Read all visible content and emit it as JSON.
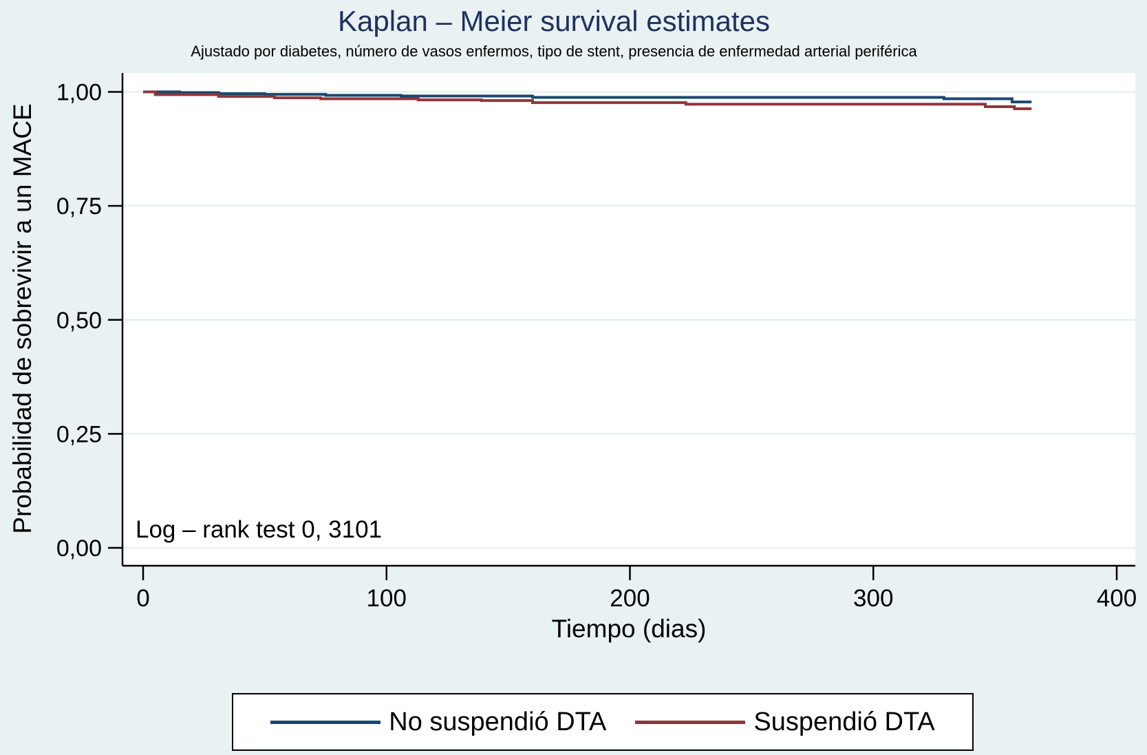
{
  "chart_data": {
    "type": "line",
    "subtype": "kaplan-meier-step-survival",
    "title": "Kaplan – Meier survival estimates",
    "subtitle": "Ajustado por diabetes, número de vasos enfermos, tipo de stent, presencia de enfermedad arterial periférica",
    "xlabel": "Tiempo (dias)",
    "ylabel": "Probabilidad de sobrevivir a un MACE",
    "annotation": "Log – rank test 0, 3101",
    "xlim": [
      0,
      400
    ],
    "ylim": [
      0,
      1
    ],
    "grid": true,
    "legend_position": "bottom",
    "x_ticks": [
      {
        "v": 0,
        "label": "0"
      },
      {
        "v": 100,
        "label": "100"
      },
      {
        "v": 200,
        "label": "200"
      },
      {
        "v": 300,
        "label": "300"
      },
      {
        "v": 400,
        "label": "400"
      }
    ],
    "y_ticks": [
      {
        "v": 0.0,
        "label": "0,00"
      },
      {
        "v": 0.25,
        "label": "0,25"
      },
      {
        "v": 0.5,
        "label": "0,50"
      },
      {
        "v": 0.75,
        "label": "0,75"
      },
      {
        "v": 1.0,
        "label": "1,00"
      }
    ],
    "series": [
      {
        "name": "No suspendió DTA",
        "color": "#1a476f",
        "t_end": 365,
        "steps": [
          [
            0,
            1.0
          ],
          [
            15,
            0.9985
          ],
          [
            31,
            0.996
          ],
          [
            50,
            0.9945
          ],
          [
            75,
            0.9925
          ],
          [
            106,
            0.991
          ],
          [
            160,
            0.988
          ],
          [
            329,
            0.985
          ],
          [
            357,
            0.978
          ]
        ]
      },
      {
        "name": "Suspendió DTA",
        "color": "#90353b",
        "t_end": 365,
        "steps": [
          [
            0,
            1.0
          ],
          [
            5,
            0.994
          ],
          [
            31,
            0.99
          ],
          [
            54,
            0.987
          ],
          [
            73,
            0.985
          ],
          [
            113,
            0.9825
          ],
          [
            139,
            0.981
          ],
          [
            160,
            0.9765
          ],
          [
            223,
            0.973
          ],
          [
            346,
            0.9675
          ],
          [
            358,
            0.963
          ]
        ]
      }
    ],
    "colors": {
      "background": "#e9f1f2",
      "plot_background": "#ffffff",
      "grid": "#e2ebed",
      "axis": "#000000",
      "title": "#1e3160",
      "tick_text": "#000000"
    }
  }
}
